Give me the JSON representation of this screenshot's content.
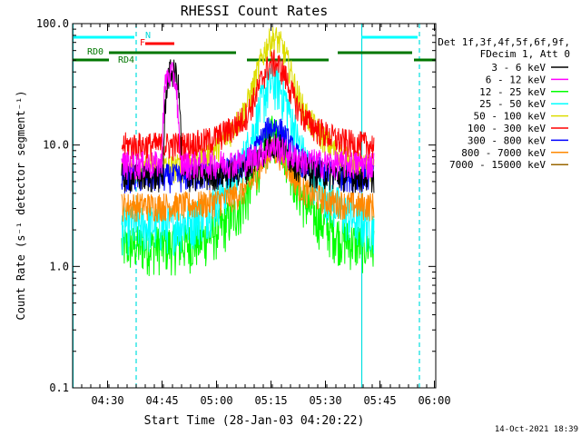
{
  "chart_data": {
    "type": "line",
    "title": "RHESSI Count Rates",
    "xlabel": "Start Time (28-Jan-03 04:20:22)",
    "ylabel": "Count Rate (s⁻¹ detector segment⁻¹)",
    "yscale": "log",
    "ylim": [
      0.1,
      100
    ],
    "xlim_minutes": [
      0,
      100
    ],
    "y_tick_labels": [
      "0.1",
      "1.0",
      "10.0",
      "100.0"
    ],
    "x_ticks": [
      {
        "label": "04:30",
        "minute": 9.63
      },
      {
        "label": "04:45",
        "minute": 24.63
      },
      {
        "label": "05:00",
        "minute": 39.63
      },
      {
        "label": "05:15",
        "minute": 54.63
      },
      {
        "label": "05:30",
        "minute": 69.63
      },
      {
        "label": "05:45",
        "minute": 84.63
      },
      {
        "label": "06:00",
        "minute": 99.63
      }
    ],
    "legend_header": [
      "Det 1f,3f,4f,5f,6f,9f,",
      "FDecim 1, Att 0"
    ],
    "series": [
      {
        "name": "3 - 6 keV",
        "color": "#000000",
        "base": 5.5,
        "peak": 9.0,
        "spike": 40,
        "spike_at": [
          25,
          30
        ],
        "data_range": [
          13.5,
          83
        ]
      },
      {
        "name": "6 - 12 keV",
        "color": "#ff00ff",
        "base": 7.0,
        "peak": 9.0,
        "spike": 38,
        "spike_at": [
          24,
          30
        ],
        "data_range": [
          13.5,
          83
        ]
      },
      {
        "name": "12 - 25 keV",
        "color": "#00ff00",
        "base": 1.5,
        "peak": 9.5,
        "spike": 0,
        "spike_at": [
          0,
          0
        ],
        "data_range": [
          13.5,
          83
        ]
      },
      {
        "name": "25 - 50 keV",
        "color": "#00ffff",
        "base": 2.2,
        "peak": 25,
        "spike": 0,
        "spike_at": [
          0,
          0
        ],
        "data_range": [
          13.5,
          83
        ]
      },
      {
        "name": "50 - 100 keV",
        "color": "#dddd00",
        "base": 6.5,
        "peak": 58,
        "spike": 0,
        "spike_at": [
          0,
          0
        ],
        "data_range": [
          13.5,
          83
        ]
      },
      {
        "name": "100 - 300 keV",
        "color": "#ff0000",
        "base": 10,
        "peak": 38,
        "spike": 0,
        "spike_at": [
          0,
          0
        ],
        "data_range": [
          13.5,
          83
        ]
      },
      {
        "name": "300 - 800 keV",
        "color": "#0000ff",
        "base": 5.5,
        "peak": 12,
        "spike": 0,
        "spike_at": [
          0,
          0
        ],
        "data_range": [
          13.5,
          83
        ]
      },
      {
        "name": "800 - 7000 keV",
        "color": "#ff8800",
        "base": 3.2,
        "peak": 7.5,
        "spike": 0,
        "spike_at": [
          0,
          0
        ],
        "data_range": [
          13.5,
          83
        ]
      },
      {
        "name": "7000 - 15000 keV",
        "color": "#996600",
        "base": 0,
        "peak": 0,
        "spike": 0,
        "spike_at": [
          0,
          0
        ],
        "data_range": [
          0,
          0
        ]
      }
    ],
    "flare_peak_minute": 55.5,
    "annotations": {
      "night_label": "N",
      "flare_label": "F",
      "rd0_label": "RD0",
      "rd4_label": "RD4",
      "night_bars": [
        [
          0,
          17
        ],
        [
          79.5,
          95
        ]
      ],
      "flare_bar": [
        20,
        28
      ],
      "rd0_bars": [
        [
          10,
          45
        ],
        [
          73,
          93.5
        ]
      ],
      "rd4_bars": [
        [
          0,
          10
        ],
        [
          48,
          70.5
        ],
        [
          94,
          100
        ]
      ],
      "vertical_solid": [
        0,
        79.5
      ],
      "vertical_dashed": [
        17.5,
        95.5
      ]
    },
    "timestamp": "14-Oct-2021 18:39"
  }
}
